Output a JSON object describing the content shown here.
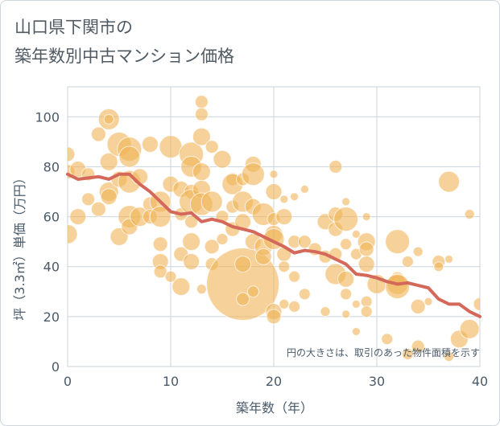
{
  "title_line1": "山口県下関市の",
  "title_line2": "築年数別中古マンション価格",
  "chart_data": {
    "type": "scatter",
    "xlabel": "築年数（年）",
    "ylabel": "坪（3.3㎡）単価（万円）",
    "xlim": [
      0,
      40
    ],
    "ylim": [
      0,
      112
    ],
    "x_ticks": [
      "0",
      "10",
      "20",
      "30",
      "40"
    ],
    "y_ticks": [
      "0",
      "20",
      "40",
      "60",
      "80",
      "100"
    ],
    "grid": true,
    "note": "円の大きさは、取引のあった物件面積を示す",
    "colors": {
      "bubble": "#f0b456",
      "line": "#d4685a",
      "grid": "#c9d3dd"
    },
    "trend_line": {
      "x": [
        0,
        1,
        2,
        3,
        4,
        5,
        6,
        7,
        8,
        9,
        10,
        11,
        12,
        13,
        14,
        15,
        16,
        17,
        18,
        19,
        20,
        21,
        22,
        23,
        24,
        25,
        26,
        27,
        28,
        29,
        30,
        31,
        32,
        33,
        34,
        35,
        36,
        37,
        38,
        39,
        40
      ],
      "y": [
        77,
        75,
        75.5,
        76,
        75,
        77,
        77,
        73,
        70,
        66,
        62,
        61,
        61.5,
        58,
        59,
        58,
        56,
        55,
        54,
        52,
        50,
        48,
        45.5,
        46.5,
        46,
        45,
        43,
        41,
        37,
        36.5,
        35.5,
        34,
        33,
        33.5,
        32.5,
        31.5,
        27,
        25,
        25,
        22,
        20
      ]
    },
    "bubbles": [
      {
        "x": 0,
        "y": 85,
        "r": 9
      },
      {
        "x": 0,
        "y": 78,
        "r": 9
      },
      {
        "x": 0,
        "y": 53,
        "r": 12
      },
      {
        "x": 1,
        "y": 79,
        "r": 10
      },
      {
        "x": 1,
        "y": 60,
        "r": 10
      },
      {
        "x": 2,
        "y": 67,
        "r": 8
      },
      {
        "x": 2,
        "y": 77,
        "r": 8
      },
      {
        "x": 3,
        "y": 93,
        "r": 9
      },
      {
        "x": 3,
        "y": 63,
        "r": 9
      },
      {
        "x": 4,
        "y": 99,
        "r": 13
      },
      {
        "x": 4,
        "y": 99,
        "r": 6
      },
      {
        "x": 4,
        "y": 82,
        "r": 11
      },
      {
        "x": 4,
        "y": 70,
        "r": 12
      },
      {
        "x": 4,
        "y": 68,
        "r": 10
      },
      {
        "x": 5,
        "y": 89,
        "r": 15
      },
      {
        "x": 5,
        "y": 75,
        "r": 10
      },
      {
        "x": 5,
        "y": 52,
        "r": 11
      },
      {
        "x": 6,
        "y": 87,
        "r": 15
      },
      {
        "x": 6,
        "y": 84,
        "r": 13
      },
      {
        "x": 6,
        "y": 74,
        "r": 14
      },
      {
        "x": 6,
        "y": 60,
        "r": 14
      },
      {
        "x": 6,
        "y": 56,
        "r": 10
      },
      {
        "x": 7,
        "y": 76,
        "r": 10
      },
      {
        "x": 7,
        "y": 60,
        "r": 12
      },
      {
        "x": 8,
        "y": 89,
        "r": 10
      },
      {
        "x": 8,
        "y": 65,
        "r": 9
      },
      {
        "x": 8,
        "y": 60,
        "r": 9
      },
      {
        "x": 9,
        "y": 66,
        "r": 13
      },
      {
        "x": 9,
        "y": 60,
        "r": 13
      },
      {
        "x": 9,
        "y": 49,
        "r": 9
      },
      {
        "x": 9,
        "y": 42,
        "r": 10
      },
      {
        "x": 9,
        "y": 38,
        "r": 8
      },
      {
        "x": 10,
        "y": 88,
        "r": 14
      },
      {
        "x": 10,
        "y": 73,
        "r": 10
      },
      {
        "x": 10,
        "y": 36,
        "r": 7
      },
      {
        "x": 11,
        "y": 71,
        "r": 10
      },
      {
        "x": 11,
        "y": 61,
        "r": 8
      },
      {
        "x": 11,
        "y": 45,
        "r": 9
      },
      {
        "x": 11,
        "y": 32,
        "r": 11
      },
      {
        "x": 12,
        "y": 85,
        "r": 15
      },
      {
        "x": 12,
        "y": 80,
        "r": 13
      },
      {
        "x": 12,
        "y": 70,
        "r": 9
      },
      {
        "x": 12,
        "y": 66,
        "r": 15
      },
      {
        "x": 12,
        "y": 58,
        "r": 8
      },
      {
        "x": 12,
        "y": 50,
        "r": 11
      },
      {
        "x": 12,
        "y": 42,
        "r": 10
      },
      {
        "x": 13,
        "y": 106,
        "r": 8
      },
      {
        "x": 13,
        "y": 101,
        "r": 8
      },
      {
        "x": 13,
        "y": 92,
        "r": 11
      },
      {
        "x": 13,
        "y": 78,
        "r": 11
      },
      {
        "x": 13,
        "y": 71,
        "r": 11
      },
      {
        "x": 13,
        "y": 65,
        "r": 14
      },
      {
        "x": 13,
        "y": 31,
        "r": 6
      },
      {
        "x": 14,
        "y": 88,
        "r": 8
      },
      {
        "x": 14,
        "y": 66,
        "r": 13
      },
      {
        "x": 14,
        "y": 48,
        "r": 9
      },
      {
        "x": 14,
        "y": 41,
        "r": 8
      },
      {
        "x": 15,
        "y": 83,
        "r": 11
      },
      {
        "x": 15,
        "y": 60,
        "r": 8
      },
      {
        "x": 15,
        "y": 51,
        "r": 7
      },
      {
        "x": 16,
        "y": 75,
        "r": 8
      },
      {
        "x": 16,
        "y": 73,
        "r": 13
      },
      {
        "x": 16,
        "y": 64,
        "r": 8
      },
      {
        "x": 16,
        "y": 55,
        "r": 9
      },
      {
        "x": 17,
        "y": 75,
        "r": 8
      },
      {
        "x": 17,
        "y": 66,
        "r": 13
      },
      {
        "x": 17,
        "y": 58,
        "r": 10
      },
      {
        "x": 17,
        "y": 33,
        "r": 45
      },
      {
        "x": 17,
        "y": 41,
        "r": 10
      },
      {
        "x": 17,
        "y": 27,
        "r": 8
      },
      {
        "x": 18,
        "y": 81,
        "r": 10
      },
      {
        "x": 18,
        "y": 77,
        "r": 14
      },
      {
        "x": 18,
        "y": 64,
        "r": 10
      },
      {
        "x": 18,
        "y": 50,
        "r": 10
      },
      {
        "x": 18,
        "y": 30,
        "r": 7
      },
      {
        "x": 19,
        "y": 61,
        "r": 14
      },
      {
        "x": 19,
        "y": 48,
        "r": 11
      },
      {
        "x": 19,
        "y": 44,
        "r": 10
      },
      {
        "x": 20,
        "y": 77,
        "r": 5
      },
      {
        "x": 20,
        "y": 70,
        "r": 10
      },
      {
        "x": 20,
        "y": 59,
        "r": 8
      },
      {
        "x": 20,
        "y": 53,
        "r": 11
      },
      {
        "x": 20,
        "y": 51,
        "r": 13
      },
      {
        "x": 20,
        "y": 22,
        "r": 10
      },
      {
        "x": 20,
        "y": 20,
        "r": 9
      },
      {
        "x": 21,
        "y": 67,
        "r": 5
      },
      {
        "x": 21,
        "y": 60,
        "r": 10
      },
      {
        "x": 21,
        "y": 45,
        "r": 9
      },
      {
        "x": 21,
        "y": 40,
        "r": 7
      },
      {
        "x": 21,
        "y": 25,
        "r": 6
      },
      {
        "x": 22,
        "y": 68,
        "r": 5
      },
      {
        "x": 22,
        "y": 50,
        "r": 8
      },
      {
        "x": 22,
        "y": 36,
        "r": 7
      },
      {
        "x": 22,
        "y": 24,
        "r": 7
      },
      {
        "x": 23,
        "y": 71,
        "r": 5
      },
      {
        "x": 23,
        "y": 50,
        "r": 8
      },
      {
        "x": 23,
        "y": 29,
        "r": 7
      },
      {
        "x": 24,
        "y": 47,
        "r": 8
      },
      {
        "x": 25,
        "y": 58,
        "r": 10
      },
      {
        "x": 25,
        "y": 44,
        "r": 8
      },
      {
        "x": 25,
        "y": 22,
        "r": 6
      },
      {
        "x": 26,
        "y": 80,
        "r": 8
      },
      {
        "x": 26,
        "y": 61,
        "r": 9
      },
      {
        "x": 26,
        "y": 55,
        "r": 9
      },
      {
        "x": 26,
        "y": 45,
        "r": 8
      },
      {
        "x": 26,
        "y": 37,
        "r": 13
      },
      {
        "x": 27,
        "y": 66,
        "r": 5
      },
      {
        "x": 27,
        "y": 59,
        "r": 15
      },
      {
        "x": 27,
        "y": 49,
        "r": 7
      },
      {
        "x": 27,
        "y": 35,
        "r": 10
      },
      {
        "x": 27,
        "y": 29,
        "r": 7
      },
      {
        "x": 27,
        "y": 21,
        "r": 5
      },
      {
        "x": 28,
        "y": 53,
        "r": 5
      },
      {
        "x": 28,
        "y": 45,
        "r": 7
      },
      {
        "x": 28,
        "y": 25,
        "r": 5
      },
      {
        "x": 28,
        "y": 14,
        "r": 5
      },
      {
        "x": 29,
        "y": 60,
        "r": 5
      },
      {
        "x": 29,
        "y": 50,
        "r": 11
      },
      {
        "x": 29,
        "y": 47,
        "r": 9
      },
      {
        "x": 29,
        "y": 41,
        "r": 10
      },
      {
        "x": 29,
        "y": 26,
        "r": 7
      },
      {
        "x": 29,
        "y": 22,
        "r": 7
      },
      {
        "x": 30,
        "y": 33,
        "r": 12
      },
      {
        "x": 31,
        "y": 11,
        "r": 7
      },
      {
        "x": 32,
        "y": 50,
        "r": 15
      },
      {
        "x": 32,
        "y": 35,
        "r": 9
      },
      {
        "x": 32,
        "y": 33,
        "r": 13
      },
      {
        "x": 32,
        "y": 32,
        "r": 15
      },
      {
        "x": 33,
        "y": 5,
        "r": 7
      },
      {
        "x": 33,
        "y": 42,
        "r": 7
      },
      {
        "x": 34,
        "y": 46,
        "r": 6
      },
      {
        "x": 34,
        "y": 24,
        "r": 9
      },
      {
        "x": 34,
        "y": 8,
        "r": 8
      },
      {
        "x": 35,
        "y": 26,
        "r": 5
      },
      {
        "x": 36,
        "y": 42,
        "r": 8
      },
      {
        "x": 36,
        "y": 40,
        "r": 6
      },
      {
        "x": 37,
        "y": 74,
        "r": 13
      },
      {
        "x": 37,
        "y": 43,
        "r": 5
      },
      {
        "x": 37,
        "y": 4,
        "r": 6
      },
      {
        "x": 38,
        "y": 11,
        "r": 11
      },
      {
        "x": 39,
        "y": 61,
        "r": 6
      },
      {
        "x": 39,
        "y": 15,
        "r": 12
      },
      {
        "x": 40,
        "y": 25,
        "r": 8
      }
    ]
  }
}
